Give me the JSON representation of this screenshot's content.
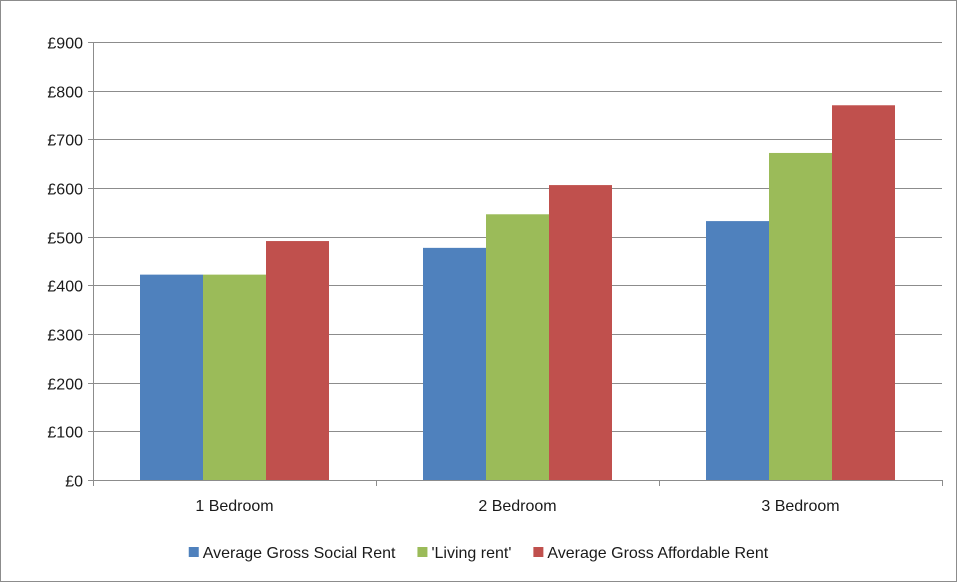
{
  "chart_data": {
    "type": "bar",
    "categories": [
      "1 Bedroom",
      "2 Bedroom",
      "3 Bedroom"
    ],
    "series": [
      {
        "name": "Average Gross Social Rent",
        "values": [
          422,
          477,
          532
        ],
        "color": "#4f81bd"
      },
      {
        "name": "'Living rent'",
        "values": [
          422,
          546,
          672
        ],
        "color": "#9bbb59"
      },
      {
        "name": "Average Gross Affordable Rent",
        "values": [
          491,
          606,
          770
        ],
        "color": "#c0504d"
      }
    ],
    "ylim": [
      0,
      900
    ],
    "ytick_labels": [
      "£0",
      "£100",
      "£200",
      "£300",
      "£400",
      "£500",
      "£600",
      "£700",
      "£800",
      "£900"
    ],
    "title": "",
    "xlabel": "",
    "ylabel": "",
    "grid": true,
    "legend_position": "bottom"
  }
}
